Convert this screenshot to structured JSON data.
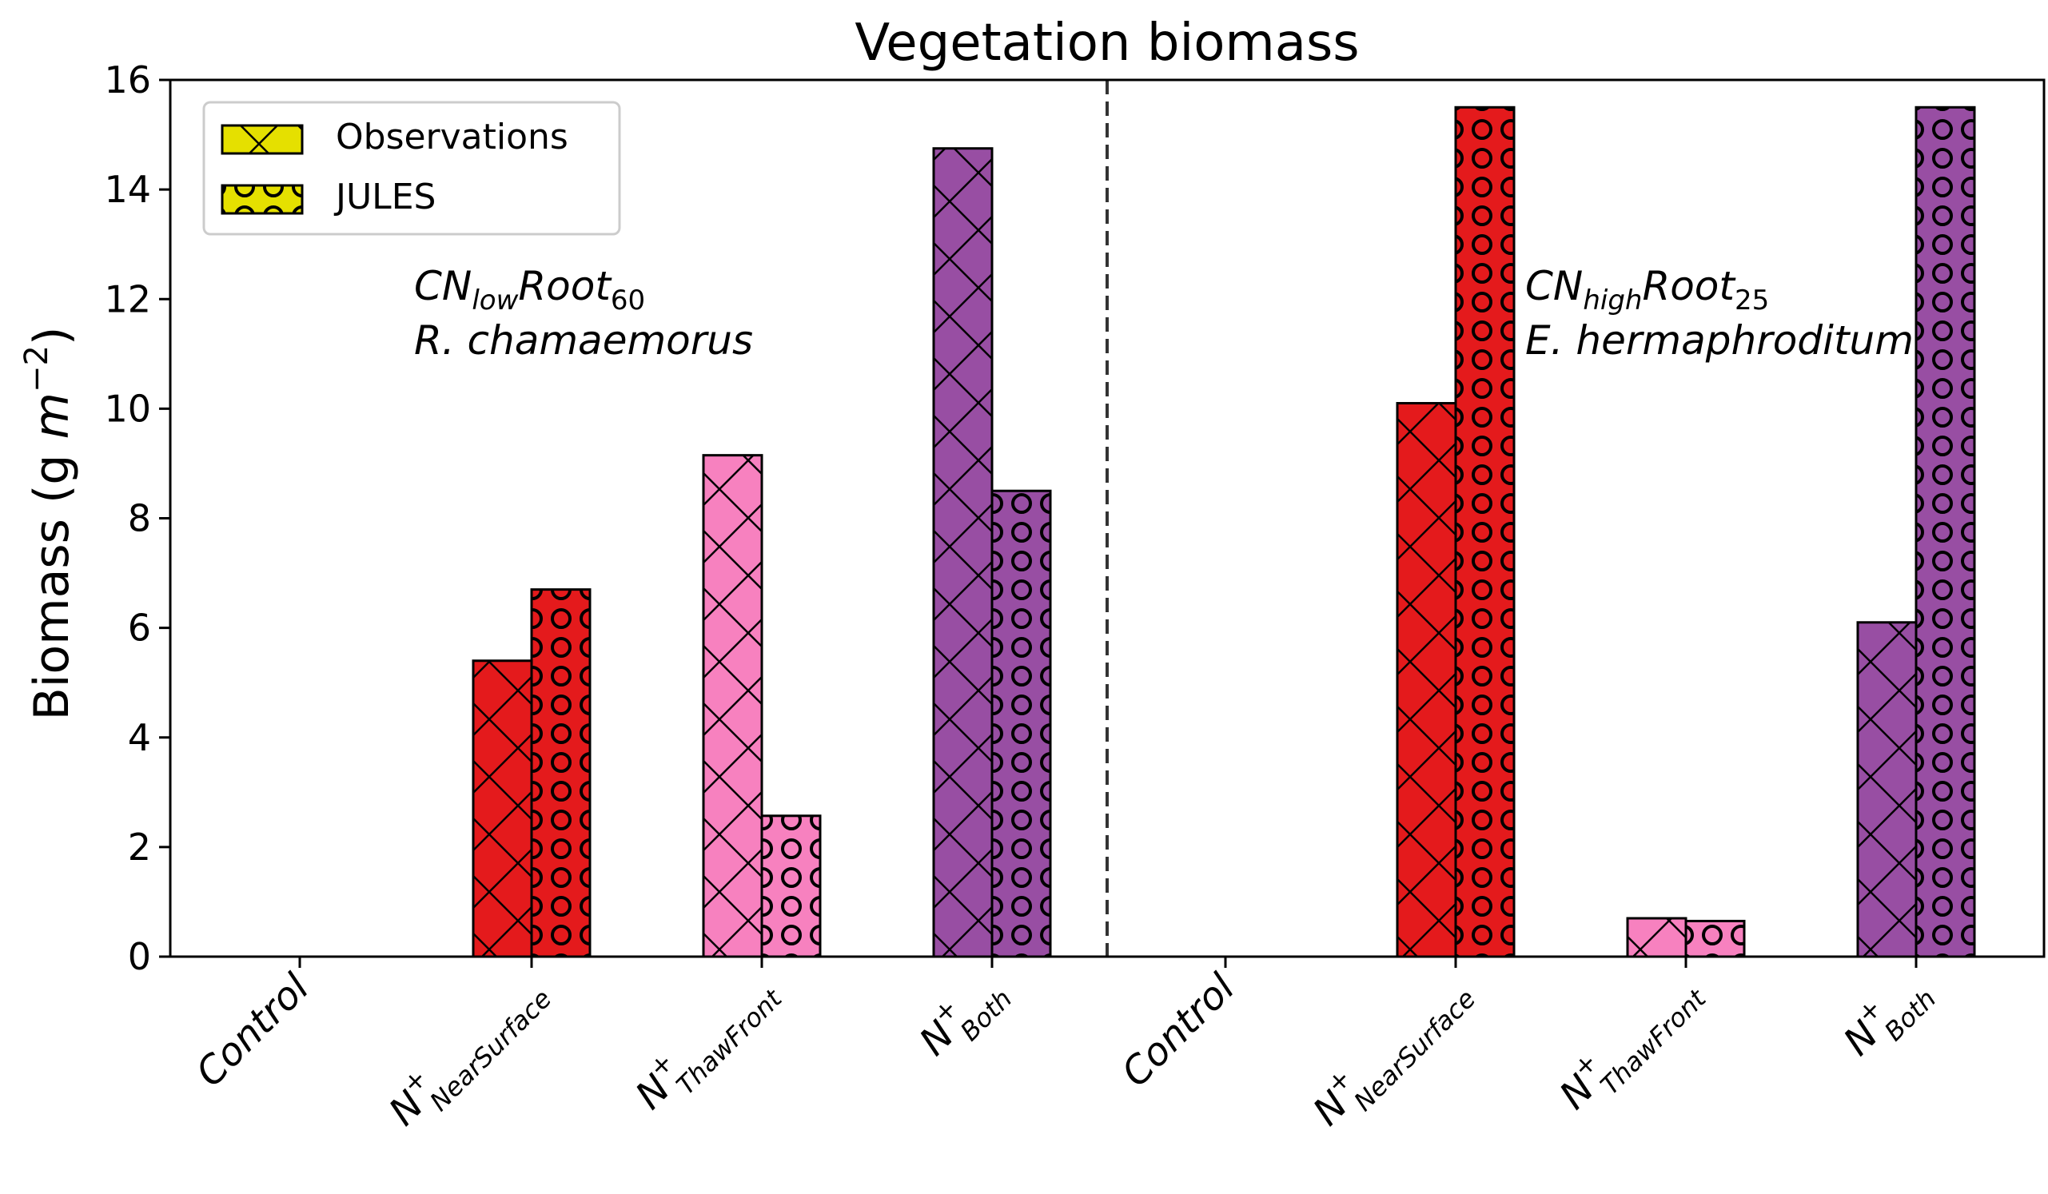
{
  "chart_data": {
    "type": "bar",
    "title": "Vegetation biomass",
    "ylabel": "Biomass (g m−2)",
    "ylabel_parts": {
      "main": "Biomass (g ",
      "unit": "m",
      "exp": "−2",
      "close": ")"
    },
    "xlabel": "",
    "ylim": [
      0,
      16
    ],
    "yticks": [
      0,
      2,
      4,
      6,
      8,
      10,
      12,
      14,
      16
    ],
    "grid": false,
    "legend": {
      "placement": "top-left",
      "entries": [
        {
          "label": "Observations",
          "hatch": "cross",
          "color": "#e5e000"
        },
        {
          "label": "JULES",
          "hatch": "circle",
          "color": "#e5e000"
        }
      ]
    },
    "groups": [
      {
        "name": "CN_low Root_60",
        "species": "R. chamaemorus"
      },
      {
        "name": "CN_high Root_25",
        "species": "E. hermaphroditum"
      }
    ],
    "annotations": [
      {
        "base": "CN",
        "sub": "low",
        "base2": "Root",
        "sub2": "60",
        "species": "R. chamaemorus"
      },
      {
        "base": "CN",
        "sub": "high",
        "base2": "Root",
        "sub2": "25",
        "species": "E. hermaphroditum"
      }
    ],
    "categories": [
      {
        "base": "Control",
        "sup": "",
        "sub": "",
        "color": "#e41a1c",
        "observations": 0,
        "jules": 0
      },
      {
        "base": "N",
        "sup": "+",
        "sub": "NearSurface",
        "color": "#e41a1c",
        "observations": 5.4,
        "jules": 6.7
      },
      {
        "base": "N",
        "sup": "+",
        "sub": "ThawFront",
        "color": "#f781bf",
        "observations": 9.15,
        "jules": 2.57
      },
      {
        "base": "N",
        "sup": "+",
        "sub": "Both",
        "color": "#984ea3",
        "observations": 14.75,
        "jules": 8.5
      },
      {
        "base": "Control",
        "sup": "",
        "sub": "",
        "color": "#e41a1c",
        "observations": 0,
        "jules": 0
      },
      {
        "base": "N",
        "sup": "+",
        "sub": "NearSurface",
        "color": "#e41a1c",
        "observations": 10.1,
        "jules": 15.5
      },
      {
        "base": "N",
        "sup": "+",
        "sub": "ThawFront",
        "color": "#f781bf",
        "observations": 0.7,
        "jules": 0.65
      },
      {
        "base": "N",
        "sup": "+",
        "sub": "Both",
        "color": "#984ea3",
        "observations": 6.1,
        "jules": 15.5
      }
    ],
    "series": [
      {
        "name": "Observations",
        "key": "observations"
      },
      {
        "name": "JULES",
        "key": "jules"
      }
    ]
  }
}
